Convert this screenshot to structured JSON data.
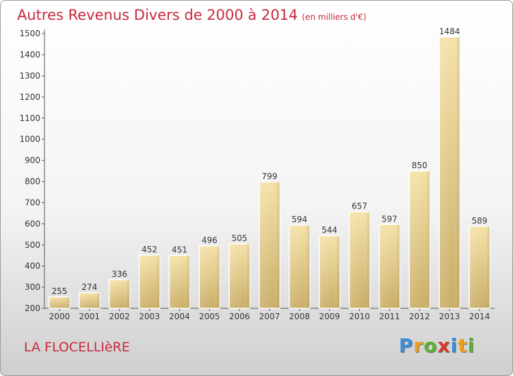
{
  "title": {
    "main": "Autres Revenus Divers de 2000 à 2014",
    "sub": "(en milliers d'€)"
  },
  "city": "LA FLOCELLIèRE",
  "logo": {
    "letters": [
      {
        "ch": "P",
        "color": "#3a8fd8"
      },
      {
        "ch": "r",
        "color": "#e8a020"
      },
      {
        "ch": "o",
        "color": "#5ab030"
      },
      {
        "ch": "x",
        "color": "#d83a2a"
      },
      {
        "ch": "i",
        "color": "#3a8fd8"
      },
      {
        "ch": "t",
        "color": "#e8a020"
      },
      {
        "ch": "i",
        "color": "#5ab030"
      }
    ]
  },
  "chart_data": {
    "type": "bar",
    "categories": [
      "2000",
      "2001",
      "2002",
      "2003",
      "2004",
      "2005",
      "2006",
      "2007",
      "2008",
      "2009",
      "2010",
      "2011",
      "2012",
      "2013",
      "2014"
    ],
    "values": [
      255,
      274,
      336,
      452,
      451,
      496,
      505,
      799,
      594,
      544,
      657,
      597,
      850,
      1484,
      589
    ],
    "yticks": [
      200,
      300,
      400,
      500,
      600,
      700,
      800,
      900,
      1000,
      1100,
      1200,
      1300,
      1400,
      1500
    ],
    "ylim": [
      200,
      1500
    ],
    "grid": false,
    "bar_color": "#e8cf8a"
  }
}
